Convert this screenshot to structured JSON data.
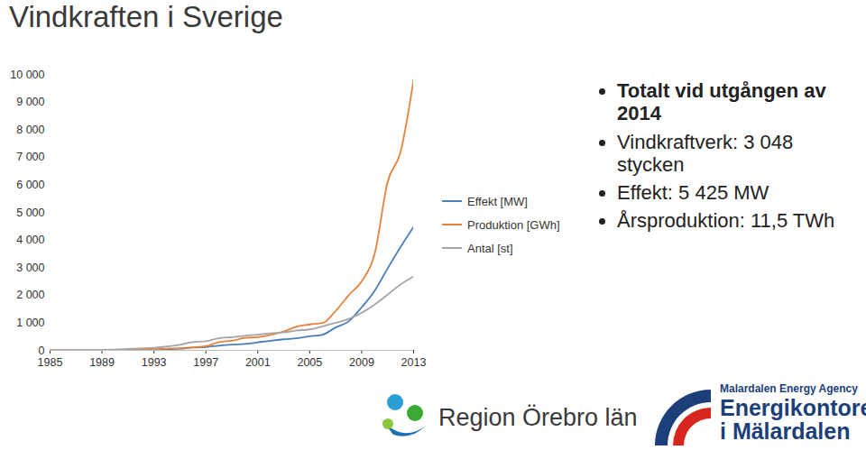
{
  "chart_data": {
    "type": "line",
    "title": "Vindkraften i Sverige",
    "x": [
      1985,
      1986,
      1987,
      1988,
      1989,
      1990,
      1991,
      1992,
      1993,
      1994,
      1995,
      1996,
      1997,
      1998,
      1999,
      2000,
      2001,
      2002,
      2003,
      2004,
      2005,
      2006,
      2007,
      2008,
      2009,
      2010,
      2011,
      2012,
      2013
    ],
    "series": [
      {
        "name": "Effekt [MW]",
        "color": "#4a7ebb",
        "values": [
          1,
          2,
          4,
          6,
          8,
          10,
          15,
          20,
          30,
          40,
          60,
          100,
          120,
          170,
          210,
          230,
          290,
          350,
          400,
          440,
          510,
          570,
          830,
          1050,
          1560,
          2160,
          2970,
          3750,
          4470
        ]
      },
      {
        "name": "Produktion [GWh]",
        "color": "#e8823a",
        "values": [
          1,
          2,
          3,
          5,
          8,
          10,
          15,
          25,
          40,
          60,
          80,
          110,
          150,
          300,
          350,
          450,
          480,
          560,
          680,
          860,
          940,
          990,
          1430,
          2000,
          2500,
          3500,
          6100,
          7200,
          9800
        ]
      },
      {
        "name": "Antal [st]",
        "color": "#a5a5a5",
        "values": [
          3,
          5,
          8,
          10,
          20,
          30,
          50,
          70,
          90,
          140,
          200,
          300,
          330,
          440,
          480,
          530,
          570,
          620,
          650,
          720,
          760,
          870,
          1000,
          1140,
          1360,
          1660,
          2020,
          2390,
          2680
        ]
      }
    ],
    "xlim": [
      1985,
      2013
    ],
    "xticks": [
      1985,
      1989,
      1993,
      1997,
      2001,
      2005,
      2009,
      2013
    ],
    "ylim": [
      0,
      10000
    ],
    "yticks": [
      0,
      {
        "value": 1000,
        "label": "1 000"
      },
      {
        "value": 2000,
        "label": "2 000"
      },
      {
        "value": 3000,
        "label": "3 000"
      },
      {
        "value": 4000,
        "label": "4 000"
      },
      {
        "value": 5000,
        "label": "5 000"
      },
      {
        "value": 6000,
        "label": "6 000"
      },
      {
        "value": 7000,
        "label": "7 000"
      },
      {
        "value": 8000,
        "label": "8 000"
      },
      {
        "value": 9000,
        "label": "9 000"
      },
      {
        "value": 10000,
        "label": "10 000"
      }
    ],
    "grid": false,
    "legend": "right",
    "annotations": [
      "Totalt vid utgången av 2014",
      "Vindkraftverk: 3 048 stycken",
      "Effekt: 5 425 MW",
      "Årsproduktion: 11,5 TWh"
    ]
  },
  "logos": [
    [
      "Region Örebro län"
    ],
    [
      "Malardalen Energy Agency",
      "Energikontoret",
      "i Mälardalen"
    ]
  ]
}
